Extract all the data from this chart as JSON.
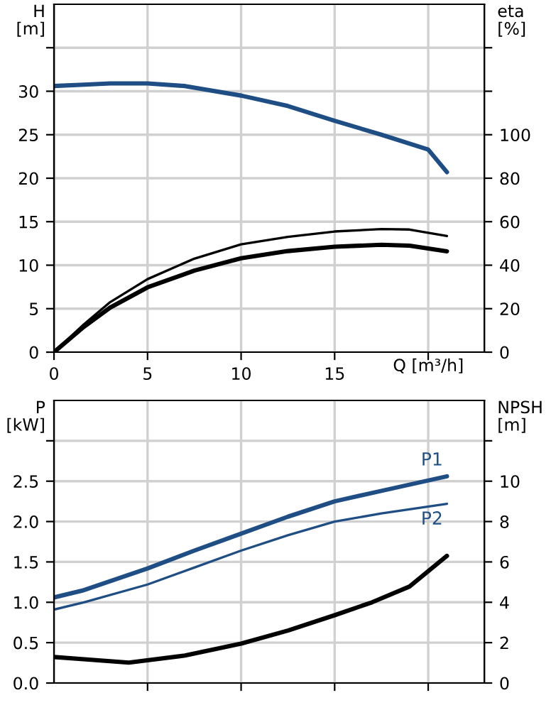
{
  "chart_data": [
    {
      "type": "line",
      "ylabel": "H\n[m]",
      "y2label": "eta\n[%]",
      "xlabel": "Q [m³/h]",
      "xlim": [
        0,
        23
      ],
      "xticks": [
        0,
        5,
        10,
        15,
        {
          "value": 20,
          "label": null
        }
      ],
      "ylim": [
        0,
        40
      ],
      "yticks": [
        0,
        5,
        10,
        15,
        20,
        25,
        30,
        {
          "value": 35,
          "label": null
        }
      ],
      "y2lim": [
        0,
        160
      ],
      "y2ticks": [
        0,
        20,
        40,
        60,
        80,
        100,
        {
          "value": 120,
          "label": null
        },
        {
          "value": 140,
          "label": null
        }
      ],
      "grid": true,
      "legend": false,
      "series": [
        {
          "color": "#1f4e85",
          "x": [
            0,
            1.6,
            3,
            5,
            7,
            10,
            12.5,
            15,
            17.5,
            20,
            21
          ],
          "values": [
            30.6,
            30.75,
            30.9,
            30.9,
            30.6,
            29.5,
            28.3,
            26.6,
            25.0,
            23.3,
            20.7
          ]
        },
        {
          "color": "#000000",
          "axis": "y2",
          "x": [
            0,
            1.6,
            3,
            5,
            7.5,
            10,
            12.5,
            15,
            17.5,
            19,
            21
          ],
          "values": [
            0,
            12.8,
            23,
            33.6,
            43,
            49.6,
            53,
            55.5,
            56.6,
            56.4,
            53.4
          ]
        },
        {
          "color": "#000000",
          "axis": "y2",
          "x": [
            0,
            1.6,
            3,
            5,
            7.5,
            10,
            12.5,
            15,
            17.5,
            19,
            21
          ],
          "values": [
            0,
            11.7,
            20.5,
            29.8,
            37.5,
            43.2,
            46.5,
            48.5,
            49.4,
            49,
            46.4
          ]
        }
      ]
    },
    {
      "type": "line",
      "ylabel": "P\n[kW]",
      "y2label": "NPSH\n[m]",
      "xlim": [
        0,
        23
      ],
      "xticks": [
        {
          "value": 5,
          "label": null
        },
        {
          "value": 10,
          "label": null
        },
        {
          "value": 15,
          "label": null
        },
        {
          "value": 20,
          "label": null
        }
      ],
      "ylim": [
        0,
        3.5
      ],
      "yticks": [
        {
          "value": 0,
          "label": "0.0"
        },
        0.5,
        {
          "value": 1,
          "label": "1.0"
        },
        1.5,
        {
          "value": 2,
          "label": "2.0"
        },
        2.5,
        {
          "value": 3,
          "label": null
        }
      ],
      "y2lim": [
        0,
        14
      ],
      "y2ticks": [
        0,
        2,
        4,
        6,
        8,
        10,
        {
          "value": 12,
          "label": null
        }
      ],
      "tick_labels": "y",
      "grid": true,
      "legend": false,
      "series": [
        {
          "name": "P1",
          "color": "#1f4e85",
          "x": [
            0,
            1.6,
            5,
            7.5,
            10,
            12.5,
            15,
            17.5,
            21
          ],
          "values": [
            1.06,
            1.15,
            1.42,
            1.64,
            1.85,
            2.06,
            2.25,
            2.38,
            2.56
          ]
        },
        {
          "name": "P2",
          "color": "#1f4e85",
          "x": [
            0,
            1.6,
            5,
            7.5,
            10,
            12.5,
            15,
            17.5,
            21
          ],
          "values": [
            0.91,
            1.0,
            1.22,
            1.43,
            1.64,
            1.83,
            2.0,
            2.1,
            2.22
          ]
        },
        {
          "color": "#000000",
          "axis": "y2",
          "x": [
            0,
            1.6,
            4,
            7,
            10,
            12.5,
            15,
            17,
            19,
            21
          ],
          "values": [
            1.29,
            1.18,
            1.01,
            1.36,
            1.95,
            2.6,
            3.36,
            4.0,
            4.78,
            6.3
          ]
        }
      ]
    }
  ]
}
